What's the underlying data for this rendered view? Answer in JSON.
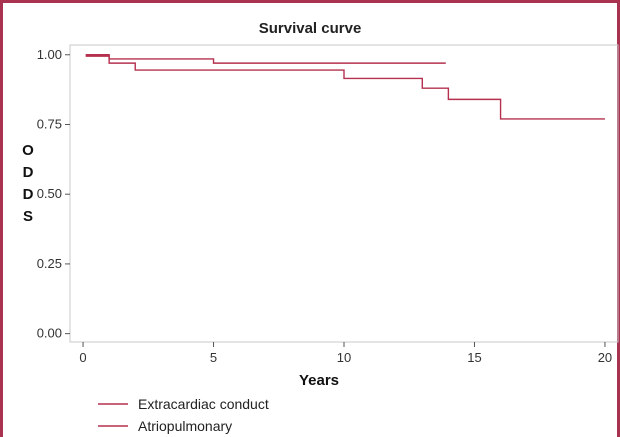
{
  "chart_data": {
    "type": "line",
    "title": "Survival curve",
    "xlabel": "Years",
    "ylabel": [
      "O",
      "D",
      "D",
      "S"
    ],
    "xlim": [
      -0.5,
      20.5
    ],
    "ylim": [
      -0.03,
      1.035
    ],
    "x_ticks": [
      0,
      5,
      10,
      15,
      20
    ],
    "y_ticks": [
      0.0,
      0.25,
      0.5,
      0.75,
      1.0
    ],
    "y_tick_labels": [
      "0.00",
      "0.25",
      "0.50",
      "0.75",
      "1.00"
    ],
    "grid": false,
    "legend_position": "bottom-left",
    "series": [
      {
        "name": "Extracardiac conduct",
        "color": "#b5304f",
        "step": true,
        "points": [
          [
            0.1,
            1.0
          ],
          [
            1.0,
            0.985
          ],
          [
            5.0,
            0.97
          ],
          [
            13.9,
            0.97
          ]
        ]
      },
      {
        "name": "Atriopulmonary",
        "color": "#b5304f",
        "step": true,
        "points": [
          [
            0.1,
            0.995
          ],
          [
            1.0,
            0.97
          ],
          [
            2.0,
            0.945
          ],
          [
            10.0,
            0.915
          ],
          [
            13.0,
            0.88
          ],
          [
            14.0,
            0.84
          ],
          [
            16.0,
            0.77
          ],
          [
            20.0,
            0.77
          ]
        ]
      }
    ]
  }
}
